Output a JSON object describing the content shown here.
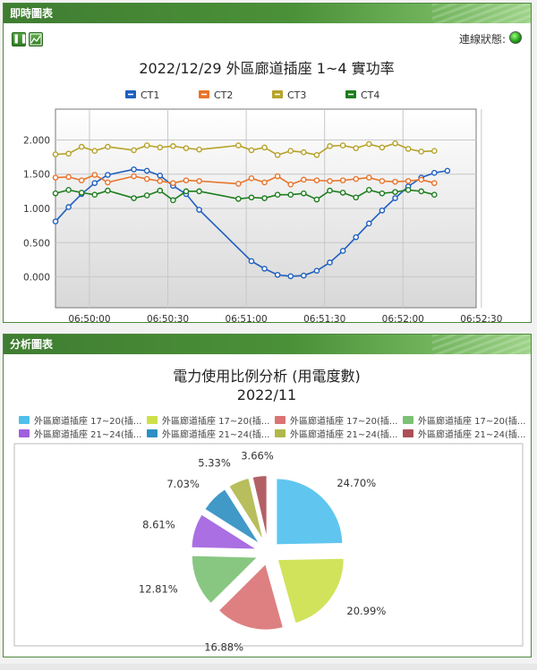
{
  "panel1": {
    "header": "即時圖表",
    "status_label": "連線狀態:",
    "pause_icon": "pause-icon",
    "chart_icon": "line-chart-icon"
  },
  "panel2": {
    "header": "分析圖表"
  },
  "chart_data": [
    {
      "type": "line",
      "title": "2022/12/29 外區廊道插座 1~4 實功率",
      "x_ticks": [
        "06:50:00",
        "06:50:30",
        "06:51:00",
        "06:51:30",
        "06:52:00",
        "06:52:30"
      ],
      "y_ticks": [
        "0.000",
        "0.500",
        "1.000",
        "1.500",
        "2.000"
      ],
      "xlim": [
        "06:49:47",
        "06:52:28"
      ],
      "ylim": [
        -0.45,
        2.45
      ],
      "x": [
        "06:49:47",
        "06:49:52",
        "06:49:57",
        "06:50:02",
        "06:50:07",
        "06:50:12",
        "06:50:17",
        "06:50:22",
        "06:50:27",
        "06:50:32",
        "06:50:37",
        "06:50:42",
        "06:50:47",
        "06:50:52",
        "06:50:57",
        "06:51:02",
        "06:51:07",
        "06:51:12",
        "06:51:17",
        "06:51:22",
        "06:51:27",
        "06:51:32",
        "06:51:37",
        "06:51:42",
        "06:51:47",
        "06:51:52",
        "06:51:57",
        "06:52:02",
        "06:52:07",
        "06:52:12",
        "06:52:17",
        "06:52:22",
        "06:52:27"
      ],
      "series": [
        {
          "name": "CT1",
          "color": "#1f5fbf",
          "values": [
            0.81,
            1.02,
            1.21,
            1.37,
            1.49,
            null,
            1.57,
            1.55,
            1.48,
            1.33,
            1.21,
            0.98,
            null,
            null,
            null,
            0.23,
            0.12,
            0.03,
            0.01,
            0.02,
            0.09,
            0.21,
            0.38,
            0.58,
            0.78,
            0.97,
            1.15,
            1.32,
            1.45,
            1.52,
            1.55,
            null,
            null
          ]
        },
        {
          "name": "CT2",
          "color": "#e8742b",
          "values": [
            1.45,
            1.46,
            1.41,
            1.49,
            1.38,
            null,
            1.47,
            1.43,
            1.4,
            1.37,
            1.41,
            1.4,
            null,
            null,
            1.36,
            1.44,
            1.38,
            1.47,
            1.35,
            1.42,
            1.41,
            1.4,
            1.41,
            1.43,
            1.45,
            1.4,
            1.39,
            1.4,
            1.42,
            1.37,
            null,
            null,
            null
          ]
        },
        {
          "name": "CT3",
          "color": "#b7a22a",
          "values": [
            1.79,
            1.8,
            1.9,
            1.84,
            1.9,
            null,
            1.85,
            1.92,
            1.89,
            1.91,
            1.88,
            1.86,
            null,
            null,
            1.92,
            1.85,
            1.89,
            1.78,
            1.84,
            1.82,
            1.78,
            1.91,
            1.92,
            1.88,
            1.94,
            1.89,
            1.95,
            1.87,
            1.83,
            1.84,
            null,
            null,
            null
          ]
        },
        {
          "name": "CT4",
          "color": "#1d7d1d",
          "values": [
            1.22,
            1.27,
            1.23,
            1.2,
            1.26,
            null,
            1.15,
            1.19,
            1.26,
            1.12,
            1.25,
            1.25,
            null,
            null,
            1.14,
            1.16,
            1.15,
            1.2,
            1.2,
            1.22,
            1.13,
            1.26,
            1.23,
            1.16,
            1.27,
            1.22,
            1.24,
            1.27,
            1.25,
            1.2,
            null,
            null,
            null
          ]
        }
      ],
      "legend": "top-center",
      "grid": true
    },
    {
      "type": "pie",
      "title": "電力使用比例分析 (用電度數)",
      "subtitle": "2022/11",
      "legend": "top",
      "slices": [
        {
          "label": "外區廊道插座 17~20(插...",
          "value": 24.7,
          "display": "24.70%",
          "color": "#4fc0ee"
        },
        {
          "label": "外區廊道插座 17~20(插...",
          "value": 20.99,
          "display": "20.99%",
          "color": "#cde04a"
        },
        {
          "label": "外區廊道插座 17~20(插...",
          "value": 16.88,
          "display": "16.88%",
          "color": "#db7374"
        },
        {
          "label": "外區廊道插座 17~20(插...",
          "value": 12.81,
          "display": "12.81%",
          "color": "#7cc174"
        },
        {
          "label": "外區廊道插座 21~24(插...",
          "value": 8.61,
          "display": "8.61%",
          "color": "#a060e0"
        },
        {
          "label": "外區廊道插座 21~24(插...",
          "value": 7.03,
          "display": "7.03%",
          "color": "#2d8fc3"
        },
        {
          "label": "外區廊道插座 21~24(插...",
          "value": 5.33,
          "display": "5.33%",
          "color": "#b0b84a"
        },
        {
          "label": "外區廊道插座 21~24(插...",
          "value": 3.66,
          "display": "3.66%",
          "color": "#ab4f55"
        }
      ]
    }
  ]
}
